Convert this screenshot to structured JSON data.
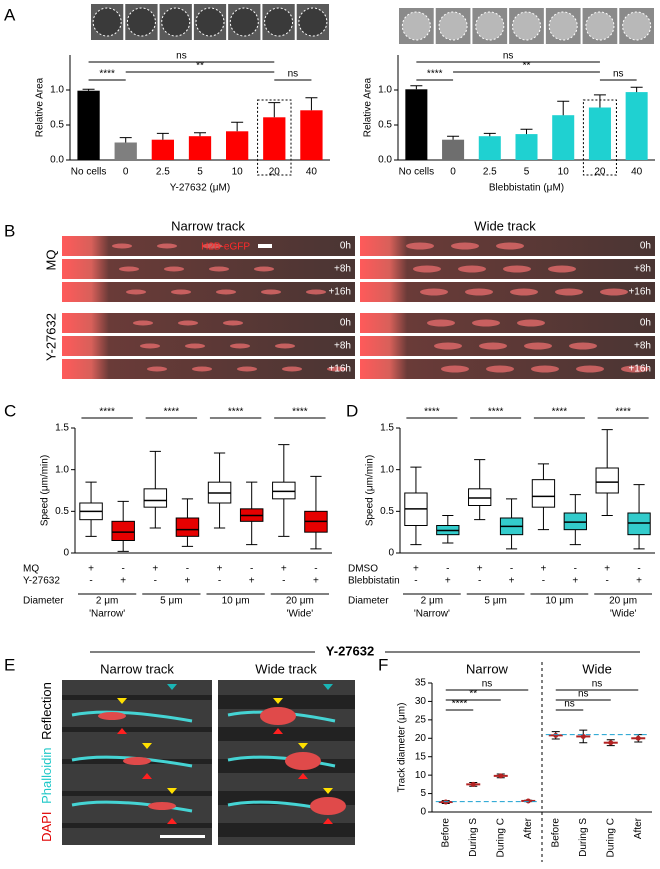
{
  "panel_letters": [
    "A",
    "B",
    "C",
    "D",
    "E",
    "F"
  ],
  "chart_data": [
    {
      "type": "bar",
      "ylabel": "Relative Area",
      "xlabel": "Y-27632 (μM)",
      "categories": [
        "No cells",
        "0",
        "2.5",
        "5",
        "10",
        "20",
        "40"
      ],
      "values": [
        0.99,
        0.25,
        0.29,
        0.34,
        0.41,
        0.61,
        0.71
      ],
      "errors": [
        0.02,
        0.07,
        0.09,
        0.05,
        0.13,
        0.21,
        0.18
      ],
      "colors": [
        "#000000",
        "#7f7f7f",
        "#ff0000",
        "#ff0000",
        "#ff0000",
        "#ff0000",
        "#ff0000"
      ],
      "ylim": [
        0,
        1.5
      ],
      "yticks": [
        {
          "value": 0,
          "label": "0.0"
        },
        0.5,
        {
          "value": 1,
          "label": "1.0"
        }
      ],
      "annotations": [
        "ns",
        "****",
        "**",
        "ns"
      ]
    },
    {
      "type": "bar",
      "ylabel": "Relative Area",
      "xlabel": "Blebbistatin (μM)",
      "categories": [
        "No cells",
        "0",
        "2.5",
        "5",
        "10",
        "20",
        "40"
      ],
      "values": [
        1.01,
        0.29,
        0.34,
        0.37,
        0.64,
        0.75,
        0.97
      ],
      "errors": [
        0.05,
        0.05,
        0.04,
        0.07,
        0.2,
        0.18,
        0.07
      ],
      "colors": [
        "#000000",
        "#6e6e6e",
        "#1fd1d1",
        "#1fd1d1",
        "#1fd1d1",
        "#1fd1d1",
        "#1fd1d1"
      ],
      "ylim": [
        0,
        1.5
      ],
      "yticks": [
        {
          "value": 0,
          "label": "0.0"
        },
        0.5,
        {
          "value": 1,
          "label": "1.0"
        }
      ],
      "annotations": [
        "ns",
        "****",
        "**",
        "ns"
      ]
    },
    {
      "type": "box",
      "ylabel": "Speed (μm/min)",
      "group_label": "Diameter",
      "categories": [
        "2 μm",
        "5 μm",
        "10 μm",
        "20 μm"
      ],
      "category_notes": [
        "'Narrow'",
        null,
        null,
        "'Wide'"
      ],
      "ylim": [
        0,
        1.5
      ],
      "yticks": [
        0,
        0.5,
        {
          "value": 1,
          "label": "1.0"
        },
        1.5
      ],
      "series": [
        {
          "name": "MQ",
          "color": "#ffffff",
          "signs": [
            "+",
            "-",
            "+",
            "-",
            "+",
            "-",
            "+",
            "-"
          ],
          "min": [
            0.2,
            0.3,
            0.3,
            0.2
          ],
          "q1": [
            0.4,
            0.55,
            0.6,
            0.65
          ],
          "median": [
            0.5,
            0.63,
            0.72,
            0.74
          ],
          "q3": [
            0.6,
            0.77,
            0.85,
            0.85
          ],
          "max": [
            0.85,
            1.22,
            1.2,
            1.3
          ]
        },
        {
          "name": "Y-27632",
          "color": "#e60000",
          "signs": [
            "-",
            "+",
            "-",
            "+",
            "-",
            "+",
            "-",
            "+"
          ],
          "min": [
            0.02,
            0.08,
            0.1,
            0.05
          ],
          "q1": [
            0.15,
            0.2,
            0.38,
            0.25
          ],
          "median": [
            0.25,
            0.28,
            0.45,
            0.38
          ],
          "q3": [
            0.38,
            0.42,
            0.53,
            0.5
          ],
          "max": [
            0.62,
            0.65,
            0.85,
            0.92
          ]
        }
      ],
      "annotations": [
        "****",
        "****",
        "****",
        "****"
      ]
    },
    {
      "type": "box",
      "ylabel": "Speed (μm/min)",
      "group_label": "Diameter",
      "categories": [
        "2 μm",
        "5 μm",
        "10 μm",
        "20 μm"
      ],
      "category_notes": [
        "'Narrow'",
        null,
        null,
        "'Wide'"
      ],
      "ylim": [
        0,
        1.5
      ],
      "yticks": [
        0,
        0.5,
        {
          "value": 1,
          "label": "1.0"
        },
        1.5
      ],
      "series": [
        {
          "name": "DMSO",
          "color": "#ffffff",
          "signs": [
            "+",
            "-",
            "+",
            "-",
            "+",
            "-",
            "+",
            "-"
          ],
          "min": [
            0.1,
            0.4,
            0.28,
            0.45
          ],
          "q1": [
            0.33,
            0.57,
            0.55,
            0.72
          ],
          "median": [
            0.53,
            0.66,
            0.68,
            0.85
          ],
          "q3": [
            0.72,
            0.77,
            0.88,
            1.02
          ],
          "max": [
            1.03,
            1.12,
            1.07,
            1.48
          ]
        },
        {
          "name": "Blebbistatin",
          "color": "#33cccc",
          "signs": [
            "-",
            "+",
            "-",
            "+",
            "-",
            "+",
            "-",
            "+"
          ],
          "min": [
            0.12,
            0.05,
            0.1,
            0.05
          ],
          "q1": [
            0.22,
            0.22,
            0.28,
            0.22
          ],
          "median": [
            0.27,
            0.32,
            0.37,
            0.36
          ],
          "q3": [
            0.33,
            0.42,
            0.48,
            0.48
          ],
          "max": [
            0.45,
            0.65,
            0.7,
            0.82
          ]
        }
      ],
      "annotations": [
        "****",
        "****",
        "****",
        "****"
      ]
    },
    {
      "type": "dot-errorbar",
      "ylabel": "Track diameter (μm)",
      "groups": [
        "Narrow",
        "Wide"
      ],
      "categories": [
        "Before",
        "During S",
        "During C",
        "After",
        "Before",
        "During S",
        "During C",
        "After"
      ],
      "values": [
        2.7,
        7.5,
        9.8,
        3.0,
        20.8,
        20.5,
        18.8,
        20.0
      ],
      "errors": [
        0.4,
        0.5,
        0.5,
        0.2,
        1.0,
        1.7,
        0.8,
        1.0
      ],
      "color": "#b22222",
      "reference_lines": [
        2.8,
        21
      ],
      "ylim": [
        0,
        35
      ],
      "yticks": [
        0,
        5,
        10,
        15,
        20,
        25,
        30,
        35
      ],
      "annotations": [
        "ns",
        "**",
        "****",
        "ns",
        "ns",
        "ns"
      ]
    }
  ],
  "panel_b": {
    "columns": [
      "Narrow track",
      "Wide track"
    ],
    "stain": "H2B-eGFP",
    "timepoints": [
      "0h",
      "+8h",
      "+16h"
    ],
    "rows": [
      "MQ",
      "Y-27632"
    ]
  },
  "section_title": "Y-27632",
  "panel_e": {
    "columns": [
      "Narrow track",
      "Wide track"
    ],
    "stains": [
      "DAPI",
      "Phalloidin",
      "Reflection"
    ]
  }
}
